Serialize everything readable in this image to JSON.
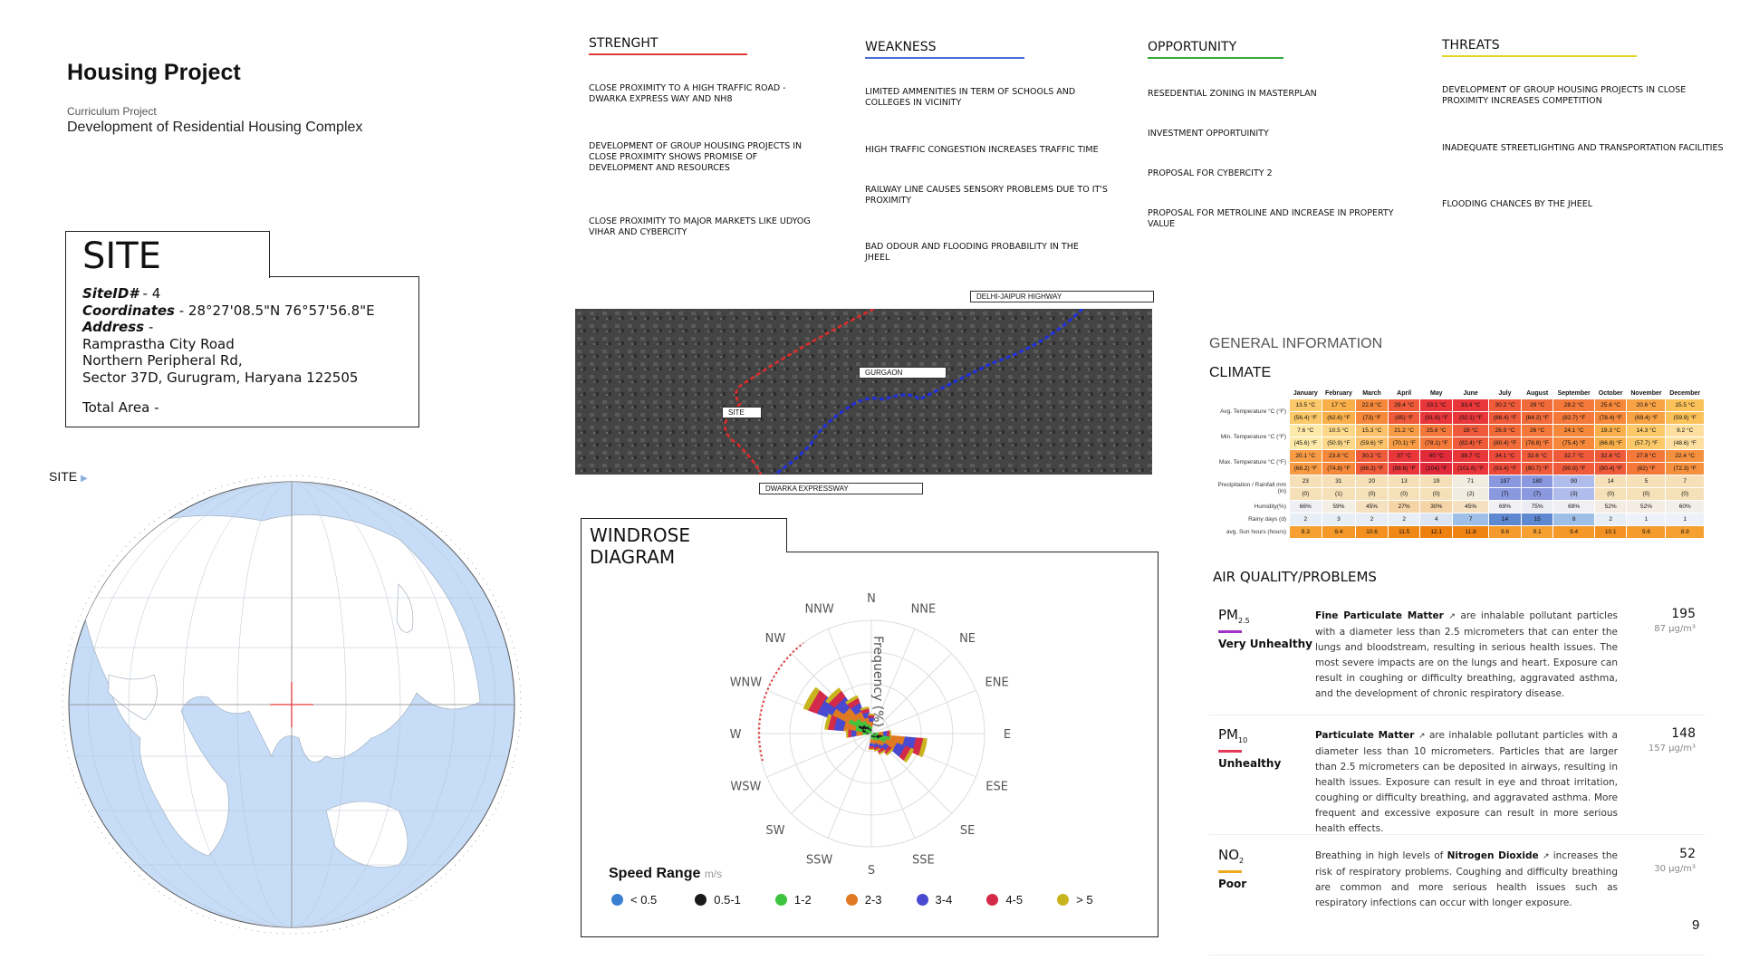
{
  "header": {
    "title": "Housing Project",
    "subtitle": "Curriculum Project",
    "description": "Development of Residential Housing Complex"
  },
  "site": {
    "heading": "SITE",
    "site_id_label": "SiteID#",
    "site_id_value": " - 4",
    "coord_label": "Coordinates",
    "coord_value": " - 28°27'08.5\"N 76°57'56.8\"E",
    "address_label": "Address",
    "address_sep": " -",
    "address_lines": [
      "Ramprastha City Road",
      "Northern Peripheral Rd,",
      "Sector 37D, Gurugram, Haryana 122505"
    ],
    "total_area": "Total Area -",
    "globe_label": "SITE"
  },
  "swot": [
    {
      "title": "STRENGHT",
      "color": "#e03a3a",
      "items": [
        "CLOSE PROXIMITY TO A HIGH TRAFFIC ROAD - DWARKA EXPRESS WAY AND NH8",
        "DEVELOPMENT OF GROUP HOUSING PROJECTS IN CLOSE PROXIMITY SHOWS PROMISE OF DEVELOPMENT AND RESOURCES",
        "CLOSE PROXIMITY TO MAJOR MARKETS LIKE UDYOG VIHAR AND CYBERCITY"
      ]
    },
    {
      "title": "WEAKNESS",
      "color": "#4a6fd8",
      "items": [
        "LIMITED AMMENITIES IN TERM OF SCHOOLS AND COLLEGES IN VICINITY",
        "HIGH TRAFFIC CONGESTION INCREASES TRAFFIC TIME",
        "RAILWAY LINE CAUSES SENSORY PROBLEMS DUE TO IT'S PROXIMITY",
        "BAD ODOUR AND FLOODING PROBABILITY IN THE JHEEL"
      ]
    },
    {
      "title": "OPPORTUNITY",
      "color": "#3aa83a",
      "items": [
        "RESEDENTIAL ZONING IN MASTERPLAN",
        "INVESTMENT OPPORTUINITY",
        "PROPOSAL FOR CYBERCITY 2",
        "PROPOSAL FOR METROLINE AND INCREASE IN PROPERTY VALUE"
      ]
    },
    {
      "title": "THREATS",
      "color": "#e6d422",
      "items": [
        "DEVELOPMENT OF GROUP HOUSING PROJECTS IN CLOSE PROXIMITY INCREASES COMPETITION",
        "INADEQUATE STREETLIGHTING AND TRANSPORTATION FACILITIES",
        "FLOODING CHANCES BY THE JHEEL"
      ]
    }
  ],
  "map": {
    "highway": "DELHI-JAIPUR HIGHWAY",
    "city": "GURGAON",
    "site": "SITE",
    "expressway": "DWARKA EXPRESSWAY"
  },
  "windrose": {
    "title": "WINDROSE DIAGRAM",
    "directions": [
      "N",
      "NNE",
      "NE",
      "ENE",
      "E",
      "ESE",
      "SE",
      "SSE",
      "S",
      "SSW",
      "SW",
      "WSW",
      "W",
      "WNW",
      "NW",
      "NNW"
    ],
    "axis_label": "Frequency (%)",
    "legend_title": "Speed Range",
    "legend_unit": "m/s",
    "legend": [
      {
        "label": "< 0.5",
        "color": "#3a7fd0"
      },
      {
        "label": "0.5-1",
        "color": "#1a1a1a"
      },
      {
        "label": "1-2",
        "color": "#3ec43e"
      },
      {
        "label": "2-3",
        "color": "#e07a22"
      },
      {
        "label": "3-4",
        "color": "#4a4ad0"
      },
      {
        "label": "4-5",
        "color": "#d42a4a"
      },
      {
        "label": "> 5",
        "color": "#c8b41e"
      }
    ]
  },
  "general": {
    "heading": "GENERAL INFORMATION",
    "climate": "CLIMATE"
  },
  "climate_table": {
    "months": [
      "January",
      "February",
      "March",
      "April",
      "May",
      "June",
      "July",
      "August",
      "September",
      "October",
      "November",
      "December"
    ],
    "rows": [
      {
        "label": "Avg. Temperature °C (°F)",
        "a": [
          "13.5 °C",
          "17 °C",
          "22.8 °C",
          "29.4 °C",
          "33.1 °C",
          "33.4 °C",
          "30.2 °C",
          "29 °C",
          "28.2 °C",
          "25.6 °C",
          "20.6 °C",
          "15.5 °C"
        ],
        "b": [
          "(56.4) °F",
          "(62.6) °F",
          "(73) °F",
          "(85) °F",
          "(91.6) °F",
          "(92.1) °F",
          "(86.4) °F",
          "(84.2) °F",
          "(82.7) °F",
          "(78.4) °F",
          "(69.4) °F",
          "(59.9) °F"
        ],
        "colors": [
          "#fbc96a",
          "#f9b04a",
          "#f5883a",
          "#ee5a3a",
          "#e8363a",
          "#e8363a",
          "#ee5a3a",
          "#f06a3a",
          "#f3783a",
          "#f5883a",
          "#f7a244",
          "#fbc25a"
        ]
      },
      {
        "label": "Min. Temperature °C (°F)",
        "a": [
          "7.6 °C",
          "10.5 °C",
          "15.3 °C",
          "21.2 °C",
          "25.6 °C",
          "28 °C",
          "26.9 °C",
          "26 °C",
          "24.1 °C",
          "19.3 °C",
          "14.3 °C",
          "9.2 °C"
        ],
        "b": [
          "(45.6) °F",
          "(50.9) °F",
          "(59.6) °F",
          "(70.1) °F",
          "(78.1) °F",
          "(82.4) °F",
          "(80.4) °F",
          "(78.8) °F",
          "(75.4) °F",
          "(66.8) °F",
          "(57.7) °F",
          "(48.6) °F"
        ],
        "colors": [
          "#fde9a8",
          "#fcd98a",
          "#fbc26a",
          "#f79c44",
          "#f3783a",
          "#ee5a3a",
          "#f06a3a",
          "#f3783a",
          "#f5883a",
          "#f9b04a",
          "#fbc96a",
          "#fde0a0"
        ]
      },
      {
        "label": "Max. Temperature °C (°F)",
        "a": [
          "20.1 °C",
          "23.8 °C",
          "30.2 °C",
          "37 °C",
          "40 °C",
          "38.7 °C",
          "34.1 °C",
          "32.6 °C",
          "32.7 °C",
          "32.4 °C",
          "27.8 °C",
          "22.4 °C"
        ],
        "b": [
          "(68.2) °F",
          "(74.8) °F",
          "(86.3) °F",
          "(98.6) °F",
          "(104) °F",
          "(101.6) °F",
          "(93.4) °F",
          "(90.7) °F",
          "(90.9) °F",
          "(90.4) °F",
          "(82) °F",
          "(72.3) °F"
        ],
        "colors": [
          "#f79c44",
          "#f5883a",
          "#ee5a3a",
          "#e8363a",
          "#e02a3a",
          "#e8363a",
          "#ee4a3a",
          "#ee5a3a",
          "#ee5a3a",
          "#ee5a3a",
          "#f3783a",
          "#f5903e"
        ]
      },
      {
        "label": "Precipitation / Rainfall mm (in)",
        "a": [
          "23",
          "31",
          "20",
          "13",
          "19",
          "71",
          "197",
          "180",
          "90",
          "14",
          "5",
          "7"
        ],
        "b": [
          "(0)",
          "(1)",
          "(0)",
          "(0)",
          "(0)",
          "(2)",
          "(7)",
          "(7)",
          "(3)",
          "(0)",
          "(0)",
          "(0)"
        ],
        "colors": [
          "#f5e0b8",
          "#f5e0b8",
          "#f5e0b8",
          "#f5e0b8",
          "#f5e0b8",
          "#f0ece0",
          "#8a98e0",
          "#8a98e0",
          "#b0bcec",
          "#f5e0b8",
          "#f5e0b8",
          "#f5e0b8"
        ]
      },
      {
        "label": "Humidity(%)",
        "a": [
          "66%",
          "59%",
          "45%",
          "27%",
          "30%",
          "45%",
          "69%",
          "75%",
          "69%",
          "52%",
          "52%",
          "60%"
        ],
        "b": null,
        "colors": [
          "#f0f0f4",
          "#f5eee4",
          "#f5e0c0",
          "#f5d4a8",
          "#f5d4a8",
          "#f5e0c0",
          "#f0f0f4",
          "#ececf4",
          "#f0f0f4",
          "#f5ece4",
          "#f5ece4",
          "#f2eee8"
        ]
      },
      {
        "label": "Rainy days (d)",
        "a": [
          "2",
          "3",
          "2",
          "2",
          "4",
          "7",
          "14",
          "15",
          "8",
          "2",
          "1",
          "1"
        ],
        "b": null,
        "colors": [
          "#e8eef5",
          "#e8eef5",
          "#e8eef5",
          "#e8eef5",
          "#dce6f2",
          "#9fc0e6",
          "#5e88d0",
          "#5e88d0",
          "#9fc0e6",
          "#e8eef5",
          "#eef2f8",
          "#eef2f8"
        ]
      },
      {
        "label": "avg. Sun hours (hours)",
        "a": [
          "8.3",
          "9.4",
          "10.6",
          "11.5",
          "12.1",
          "11.8",
          "9.6",
          "9.1",
          "9.4",
          "10.1",
          "9.6",
          "8.9"
        ],
        "b": null,
        "colors": [
          "#f5a030",
          "#f59828",
          "#f39020",
          "#f08818",
          "#ee8010",
          "#ef8414",
          "#f59a2c",
          "#f5a030",
          "#f59828",
          "#f39222",
          "#f59a2c",
          "#f5a030"
        ]
      }
    ]
  },
  "air_quality": {
    "heading": "AIR QUALITY/PROBLEMS",
    "items": [
      {
        "name": "PM",
        "sub": "2.5",
        "status": "Very Unhealthy",
        "color": "#a22fc8",
        "value": "195",
        "unit": "87 μg/m³",
        "lead": "",
        "bold": "Fine Particulate Matter",
        "text": " are inhalable pollutant particles with a diameter less than 2.5 micrometers that can enter the lungs and bloodstream, resulting in serious health issues. The most severe impacts are on the lungs and heart. Exposure can result in coughing or difficulty breathing, aggravated asthma, and the development of chronic respiratory disease."
      },
      {
        "name": "PM",
        "sub": "10",
        "status": "Unhealthy",
        "color": "#e33a5a",
        "value": "148",
        "unit": "157 μg/m³",
        "lead": "",
        "bold": "Particulate Matter",
        "text": " are inhalable pollutant particles with a diameter less than 10 micrometers. Particles that are larger than 2.5 micrometers can be deposited in airways, resulting in health issues. Exposure can result in eye and throat irritation, coughing or difficulty breathing, and aggravated asthma. More frequent and excessive exposure can result in more serious health effects."
      },
      {
        "name": "NO",
        "sub": "2",
        "status": "Poor",
        "color": "#f0a81e",
        "value": "52",
        "unit": "30 μg/m³",
        "lead": "Breathing in high levels of ",
        "bold": "Nitrogen Dioxide",
        "text": " increases the risk of respiratory problems. Coughing and difficulty breathing are common and more serious health issues such as respiratory infections can occur with longer exposure."
      }
    ]
  },
  "page_number": "9"
}
